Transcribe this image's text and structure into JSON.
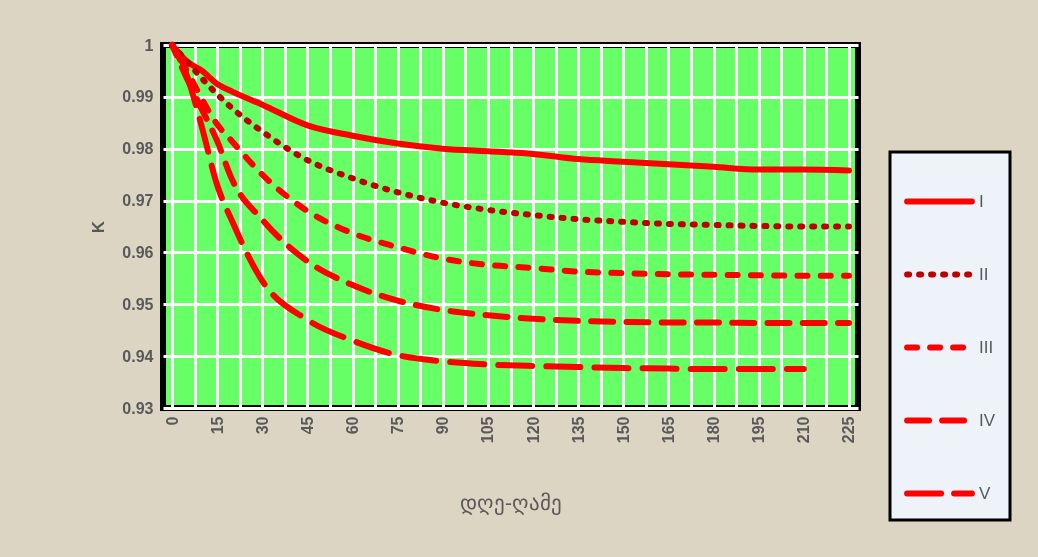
{
  "chart_data": {
    "type": "line",
    "xlabel": "დღე-ღამე",
    "ylabel": "K",
    "x": [
      0,
      5,
      10,
      15,
      20,
      30,
      45,
      60,
      75,
      90,
      105,
      120,
      135,
      150,
      165,
      180,
      195,
      210,
      225
    ],
    "series": [
      {
        "name": "I",
        "color": "#ff0000",
        "line_style": "solid",
        "values": [
          1,
          0.9968,
          0.995,
          0.9925,
          0.991,
          0.9885,
          0.9845,
          0.9825,
          0.981,
          0.98,
          0.9795,
          0.979,
          0.978,
          0.9775,
          0.977,
          0.9765,
          0.976,
          0.976,
          0.9758
        ]
      },
      {
        "name": "II",
        "color": "#c00000",
        "line_style": "dotted",
        "values": [
          1,
          0.9968,
          0.9935,
          0.9905,
          0.9878,
          0.9833,
          0.9778,
          0.9743,
          0.9716,
          0.9696,
          0.9682,
          0.9672,
          0.9664,
          0.9659,
          0.9655,
          0.9653,
          0.9651,
          0.965,
          0.965
        ]
      },
      {
        "name": "III",
        "color": "#ff0000",
        "line_style": "dashed",
        "values": [
          1,
          0.995,
          0.9895,
          0.9847,
          0.9814,
          0.975,
          0.968,
          0.9637,
          0.961,
          0.9588,
          0.9576,
          0.957,
          0.9563,
          0.956,
          0.9558,
          0.9557,
          0.9556,
          0.9555,
          0.9555
        ]
      },
      {
        "name": "IV",
        "color": "#ff0000",
        "line_style": "dashed",
        "values": [
          1,
          0.9935,
          0.9875,
          0.9815,
          0.974,
          0.9663,
          0.9583,
          0.9537,
          0.9507,
          0.9489,
          0.9479,
          0.9472,
          0.9468,
          0.9466,
          0.9465,
          0.9465,
          0.9464,
          0.9464,
          0.9464
        ]
      },
      {
        "name": "V",
        "color": "#ff0000",
        "line_style": "dashed",
        "values": [
          1,
          0.994,
          0.984,
          0.973,
          0.966,
          0.9545,
          0.947,
          0.943,
          0.9402,
          0.939,
          0.9384,
          0.9381,
          0.9379,
          0.9377,
          0.9376,
          0.9375,
          0.9375,
          0.9375,
          null
        ]
      }
    ],
    "xlim": [
      -3,
      228
    ],
    "xticks": [
      0,
      {
        "value": 7.5,
        "label": null
      },
      15,
      {
        "value": 22.5,
        "label": null
      },
      30,
      {
        "value": 37.5,
        "label": null
      },
      45,
      {
        "value": 52.5,
        "label": null
      },
      60,
      {
        "value": 67.5,
        "label": null
      },
      75,
      {
        "value": 82.5,
        "label": null
      },
      90,
      {
        "value": 97.5,
        "label": null
      },
      105,
      {
        "value": 112.5,
        "label": null
      },
      120,
      {
        "value": 127.5,
        "label": null
      },
      135,
      {
        "value": 142.5,
        "label": null
      },
      150,
      {
        "value": 157.5,
        "label": null
      },
      165,
      {
        "value": 172.5,
        "label": null
      },
      180,
      {
        "value": 187.5,
        "label": null
      },
      195,
      {
        "value": 202.5,
        "label": null
      },
      210,
      {
        "value": 217.5,
        "label": null
      },
      225
    ],
    "ylim": [
      0.93,
      1
    ],
    "yticks": [
      0.93,
      0.94,
      0.95,
      0.96,
      0.97,
      0.98,
      0.99,
      1
    ],
    "grid": true,
    "legend": "right"
  }
}
